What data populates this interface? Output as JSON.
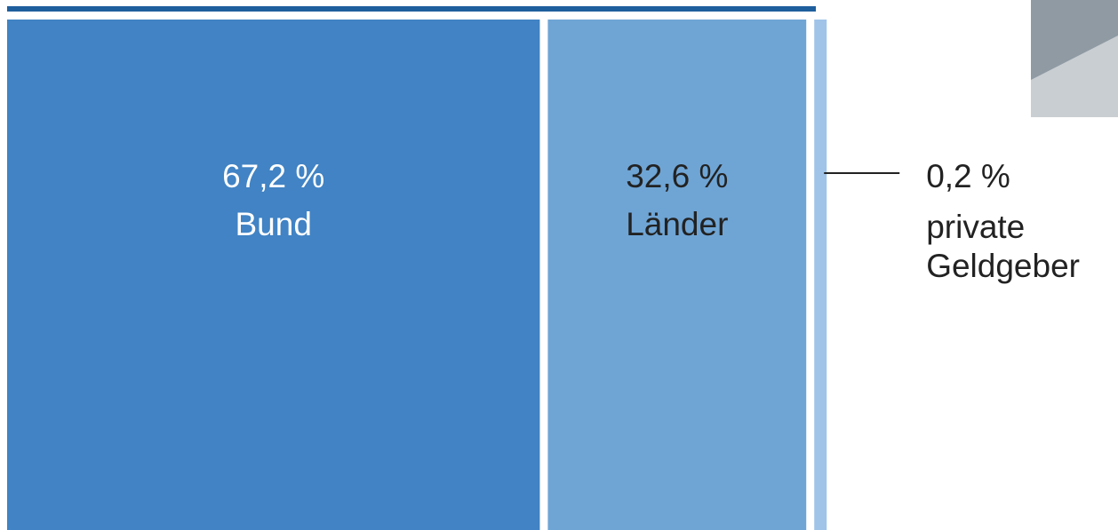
{
  "chart_data": {
    "type": "bar",
    "categories": [
      "Bund",
      "Länder",
      "private Geldgeber"
    ],
    "values": [
      67.2,
      32.6,
      0.2
    ],
    "value_labels": [
      "67,2 %",
      "32,6 %",
      "0,2 %"
    ],
    "colors": [
      "#4183c4",
      "#6fa5d5",
      "#9fc4e8"
    ]
  }
}
